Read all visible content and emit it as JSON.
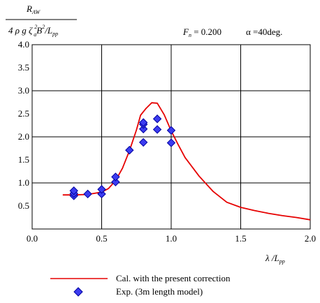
{
  "chart_data": {
    "type": "line",
    "ylabel": {
      "numerator": "R",
      "numerator_sub": "AW",
      "den_prefix": "4 ρ g ζ",
      "den_sup": "2",
      "den_sub": "a",
      "den_mid": "B",
      "den_sup2": "2",
      "den_slash": "/L",
      "den_sub2": "pp"
    },
    "annotations": {
      "fn_symbol": "F",
      "fn_sub": "n",
      "fn_value": " = 0.200",
      "alpha": "α =40deg."
    },
    "xlabel": {
      "main": "λ /L",
      "sub": "pp"
    },
    "xlim": [
      0.0,
      2.0
    ],
    "ylim": [
      0.0,
      4.0
    ],
    "x_ticks": [
      "0.0",
      "0.5",
      "1.0",
      "1.5",
      "2.0"
    ],
    "y_ticks": [
      "0.5",
      "1.0",
      "1.5",
      "2.0",
      "2.5",
      "3.0",
      "3.5",
      "4.0"
    ],
    "grid": true,
    "series": [
      {
        "name": "Cal. with the present correction",
        "kind": "line",
        "color": "#e60000",
        "x": [
          0.22,
          0.3,
          0.4,
          0.5,
          0.55,
          0.6,
          0.65,
          0.7,
          0.75,
          0.78,
          0.82,
          0.86,
          0.9,
          0.95,
          1.0,
          1.05,
          1.1,
          1.2,
          1.3,
          1.4,
          1.5,
          1.6,
          1.7,
          1.8,
          1.9,
          2.0
        ],
        "y": [
          0.74,
          0.74,
          0.75,
          0.8,
          0.88,
          1.05,
          1.32,
          1.7,
          2.15,
          2.47,
          2.62,
          2.74,
          2.73,
          2.48,
          2.13,
          1.83,
          1.55,
          1.15,
          0.82,
          0.58,
          0.47,
          0.4,
          0.34,
          0.29,
          0.25,
          0.2
        ]
      },
      {
        "name": "Exp. (3m length model)",
        "kind": "scatter",
        "color": "#3c3cf0",
        "x": [
          0.3,
          0.3,
          0.3,
          0.4,
          0.5,
          0.5,
          0.6,
          0.6,
          0.7,
          0.8,
          0.8,
          0.8,
          0.8,
          0.9,
          0.9,
          1.0,
          1.0
        ],
        "y": [
          0.72,
          0.77,
          0.83,
          0.76,
          0.76,
          0.86,
          1.02,
          1.13,
          1.71,
          1.88,
          2.17,
          2.27,
          2.31,
          2.16,
          2.39,
          1.87,
          2.14
        ]
      }
    ]
  }
}
